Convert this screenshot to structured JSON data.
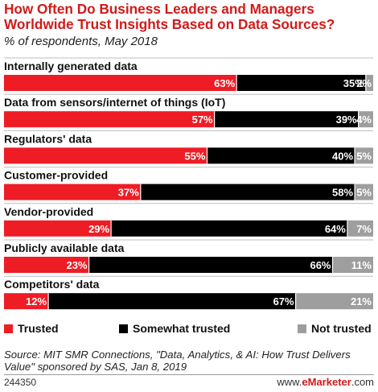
{
  "header": {
    "title": "How Often Do Business Leaders and Managers Worldwide Trust Insights Based on Data Sources?",
    "subtitle": "% of respondents, May 2018"
  },
  "colors": {
    "trusted": "#ee1c25",
    "somewhat_trusted": "#000000",
    "not_trusted": "#9e9e9e",
    "title": "#d11a1a"
  },
  "legend": {
    "items": [
      {
        "label": "Trusted",
        "color": "#ee1c25"
      },
      {
        "label": "Somewhat trusted",
        "color": "#000000"
      },
      {
        "label": "Not trusted",
        "color": "#9e9e9e"
      }
    ]
  },
  "chart_data": {
    "type": "bar",
    "orientation": "horizontal",
    "stacked": true,
    "categories": [
      "Internally generated data",
      "Data from sensors/internet of things (IoT)",
      "Regulators' data",
      "Customer-provided",
      "Vendor-provided",
      "Publicly available data",
      "Competitors' data"
    ],
    "series": [
      {
        "name": "Trusted",
        "values": [
          63,
          57,
          55,
          37,
          29,
          23,
          12
        ]
      },
      {
        "name": "Somewhat trusted",
        "values": [
          35,
          39,
          40,
          58,
          64,
          66,
          67
        ]
      },
      {
        "name": "Not trusted",
        "values": [
          2,
          4,
          5,
          5,
          7,
          11,
          21
        ]
      }
    ],
    "xlim": [
      0,
      100
    ],
    "legend_position": "bottom",
    "grid": false
  },
  "source": {
    "text": "Source: MIT SMR Connections, \"Data, Analytics, & AI: How Trust Delivers Value\" sponsored by SAS, Jan 8, 2019"
  },
  "footer": {
    "id": "244350",
    "site_prefix": "www.",
    "site_brand": "eMarketer",
    "site_suffix": ".com"
  }
}
